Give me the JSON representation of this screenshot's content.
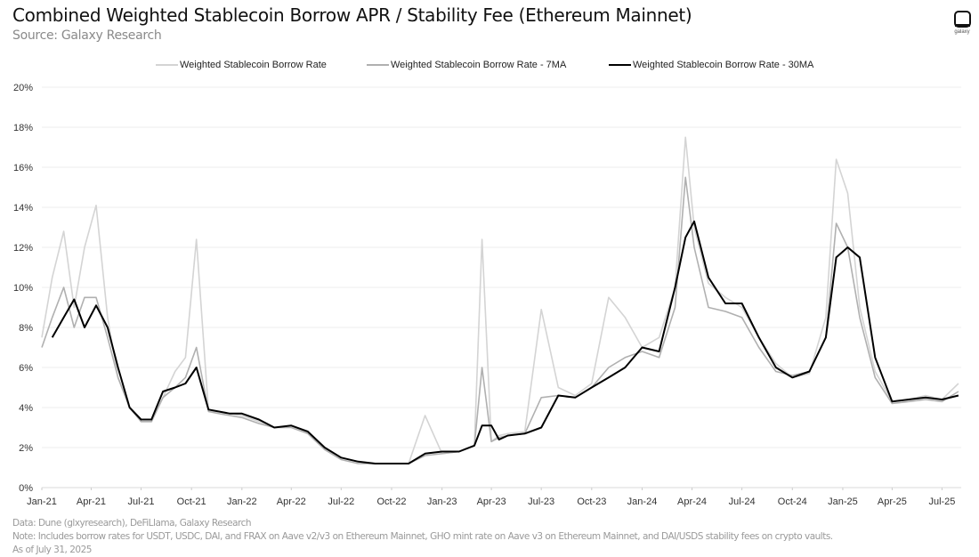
{
  "header": {
    "title": "Combined Weighted Stablecoin Borrow APR / Stability Fee (Ethereum Mainnet)",
    "subtitle": "Source: Galaxy Research",
    "logo_icon": "galaxy-logo-icon",
    "logo_text": "galaxy"
  },
  "legend": [
    {
      "label": "Weighted Stablecoin Borrow Rate",
      "color": "#d4d4d4"
    },
    {
      "label": "Weighted Stablecoin Borrow Rate - 7MA",
      "color": "#b0b0b0"
    },
    {
      "label": "Weighted Stablecoin Borrow Rate - 30MA",
      "color": "#000000"
    }
  ],
  "footer": {
    "data_source": "Data: Dune (glxyresearch), DeFiLlama, Galaxy Research",
    "note": "Note: Includes borrow rates for USDT, USDC, DAI, and FRAX on Aave v2/v3 on Ethereum Mainnet, GHO mint rate on Aave v3 on Ethereum Mainnet, and DAI/USDS stability fees on crypto vaults.",
    "as_of": "As of July 31, 2025"
  },
  "chart_data": {
    "type": "line",
    "title": "Combined Weighted Stablecoin Borrow APR / Stability Fee (Ethereum Mainnet)",
    "subtitle": "Source: Galaxy Research",
    "xlabel": "",
    "ylabel": "",
    "ylim": [
      0,
      20
    ],
    "y_ticks": [
      "0%",
      "2%",
      "4%",
      "6%",
      "8%",
      "10%",
      "12%",
      "14%",
      "16%",
      "18%",
      "20%"
    ],
    "x_ticks": [
      "Jan-21",
      "Apr-21",
      "Jul-21",
      "Oct-21",
      "Jan-22",
      "Apr-22",
      "Jul-22",
      "Oct-22",
      "Jan-23",
      "Apr-23",
      "Jul-23",
      "Oct-23",
      "Jan-24",
      "Apr-24",
      "Jul-24",
      "Oct-24",
      "Jan-25",
      "Apr-25",
      "Jul-25"
    ],
    "grid": "horizontal",
    "legend_position": "top",
    "x": [
      "2021-01-01",
      "2021-01-20",
      "2021-02-10",
      "2021-03-01",
      "2021-03-20",
      "2021-04-10",
      "2021-05-01",
      "2021-05-20",
      "2021-06-10",
      "2021-07-01",
      "2021-07-20",
      "2021-08-10",
      "2021-09-01",
      "2021-09-20",
      "2021-10-10",
      "2021-11-01",
      "2021-11-20",
      "2021-12-10",
      "2022-01-01",
      "2022-02-01",
      "2022-03-01",
      "2022-04-01",
      "2022-05-01",
      "2022-06-01",
      "2022-07-01",
      "2022-08-01",
      "2022-09-01",
      "2022-10-01",
      "2022-11-01",
      "2022-12-01",
      "2023-01-01",
      "2023-02-01",
      "2023-03-01",
      "2023-03-15",
      "2023-04-01",
      "2023-04-15",
      "2023-05-01",
      "2023-06-01",
      "2023-07-01",
      "2023-08-01",
      "2023-09-01",
      "2023-10-01",
      "2023-11-01",
      "2023-12-01",
      "2024-01-01",
      "2024-02-01",
      "2024-03-01",
      "2024-03-20",
      "2024-04-05",
      "2024-05-01",
      "2024-06-01",
      "2024-07-01",
      "2024-08-01",
      "2024-09-01",
      "2024-10-01",
      "2024-11-01",
      "2024-12-01",
      "2024-12-20",
      "2025-01-10",
      "2025-02-01",
      "2025-03-01",
      "2025-04-01",
      "2025-05-01",
      "2025-06-01",
      "2025-07-01",
      "2025-07-31"
    ],
    "series": [
      {
        "name": "Weighted Stablecoin Borrow Rate",
        "values": [
          7.5,
          10.5,
          12.8,
          9.0,
          12.0,
          14.1,
          8.5,
          5.5,
          4.0,
          3.3,
          3.3,
          4.5,
          5.8,
          6.5,
          12.4,
          3.8,
          3.8,
          3.7,
          3.6,
          3.3,
          3.0,
          3.1,
          2.8,
          2.0,
          1.5,
          1.3,
          1.2,
          1.2,
          1.2,
          3.6,
          1.7,
          1.8,
          2.1,
          12.4,
          2.3,
          2.6,
          2.7,
          2.8,
          8.9,
          5.0,
          4.6,
          5.2,
          9.5,
          8.5,
          7.0,
          7.5,
          10.0,
          17.5,
          13.0,
          10.2,
          9.5,
          9.0,
          7.5,
          6.2,
          5.5,
          5.7,
          8.5,
          16.4,
          14.7,
          9.0,
          5.8,
          4.3,
          4.4,
          4.6,
          4.4,
          5.2
        ]
      },
      {
        "name": "Weighted Stablecoin Borrow Rate - 7MA",
        "values": [
          7.0,
          8.5,
          10.0,
          8.0,
          9.5,
          9.5,
          7.5,
          5.5,
          4.0,
          3.3,
          3.3,
          4.5,
          5.0,
          5.5,
          7.0,
          3.8,
          3.7,
          3.6,
          3.5,
          3.2,
          3.0,
          3.0,
          2.7,
          1.9,
          1.4,
          1.2,
          1.2,
          1.2,
          1.2,
          1.6,
          1.7,
          1.8,
          2.1,
          6.0,
          2.3,
          2.5,
          2.6,
          2.7,
          4.5,
          4.6,
          4.5,
          5.0,
          6.0,
          6.5,
          6.8,
          6.5,
          9.0,
          15.5,
          12.0,
          9.0,
          8.8,
          8.5,
          7.0,
          5.8,
          5.6,
          5.8,
          7.5,
          13.2,
          12.0,
          8.5,
          5.5,
          4.2,
          4.3,
          4.4,
          4.3,
          4.8
        ]
      },
      {
        "name": "Weighted Stablecoin Borrow Rate - 30MA",
        "values": [
          null,
          7.5,
          8.5,
          9.4,
          8.0,
          9.1,
          8.0,
          6.0,
          4.0,
          3.4,
          3.4,
          4.8,
          5.0,
          5.2,
          6.0,
          3.9,
          3.8,
          3.7,
          3.7,
          3.4,
          3.0,
          3.1,
          2.8,
          2.0,
          1.5,
          1.3,
          1.2,
          1.2,
          1.2,
          1.7,
          1.8,
          1.8,
          2.1,
          3.1,
          3.1,
          2.4,
          2.6,
          2.7,
          3.0,
          4.6,
          4.5,
          5.0,
          5.5,
          6.0,
          7.0,
          6.8,
          10.0,
          12.5,
          13.3,
          10.5,
          9.2,
          9.2,
          7.5,
          6.0,
          5.5,
          5.8,
          7.5,
          11.5,
          12.0,
          11.5,
          6.5,
          4.3,
          4.4,
          4.5,
          4.4,
          4.6
        ]
      }
    ]
  }
}
